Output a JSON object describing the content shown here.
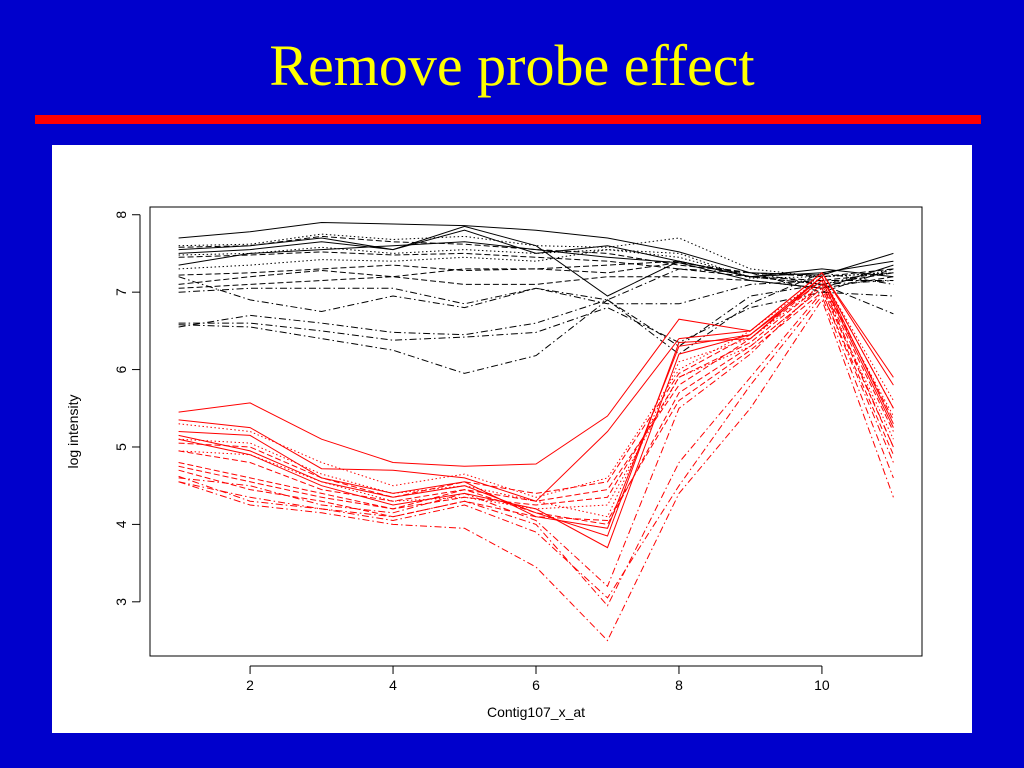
{
  "slide": {
    "title": "Remove probe effect"
  },
  "colors": {
    "background": "#0000cc",
    "title": "#ffff00",
    "rule": "#ff0000",
    "group_a": "#000000",
    "group_b": "#ff0000"
  },
  "chart_data": {
    "type": "line",
    "title": "",
    "xlabel": "Contig107_x_at",
    "ylabel": "log intensity",
    "xlim": [
      0.6,
      11.4
    ],
    "ylim": [
      2.3,
      8.1
    ],
    "xticks": [
      2,
      4,
      6,
      8,
      10
    ],
    "yticks": [
      3,
      4,
      5,
      6,
      7,
      8
    ],
    "grid": false,
    "legend": "none",
    "x": [
      1,
      2,
      3,
      4,
      5,
      6,
      7,
      8,
      9,
      10,
      11
    ],
    "series": [
      {
        "color": "#000000",
        "dash": "solid",
        "values": [
          7.7,
          7.78,
          7.9,
          7.88,
          7.86,
          7.8,
          7.7,
          7.52,
          7.25,
          7.22,
          7.5
        ]
      },
      {
        "color": "#000000",
        "dash": "solid",
        "values": [
          7.55,
          7.6,
          7.7,
          7.55,
          7.85,
          7.6,
          6.95,
          7.4,
          7.2,
          7.25,
          7.4
        ]
      },
      {
        "color": "#000000",
        "dash": "solid",
        "values": [
          7.35,
          7.5,
          7.55,
          7.6,
          7.65,
          7.55,
          7.45,
          7.38,
          7.15,
          7.05,
          7.35
        ]
      },
      {
        "color": "#000000",
        "dash": "solid",
        "values": [
          7.5,
          7.55,
          7.65,
          7.55,
          7.8,
          7.5,
          7.6,
          7.4,
          7.2,
          7.3,
          7.2
        ]
      },
      {
        "color": "#000000",
        "dash": "dotted",
        "values": [
          7.6,
          7.62,
          7.75,
          7.68,
          7.72,
          7.6,
          7.58,
          7.7,
          7.3,
          7.2,
          7.25
        ]
      },
      {
        "color": "#000000",
        "dash": "dotted",
        "values": [
          7.48,
          7.5,
          7.58,
          7.5,
          7.55,
          7.5,
          7.55,
          7.45,
          7.2,
          7.1,
          7.3
        ]
      },
      {
        "color": "#000000",
        "dash": "dotted",
        "values": [
          7.3,
          7.35,
          7.42,
          7.4,
          7.45,
          7.4,
          7.55,
          7.5,
          7.18,
          7.2,
          7.25
        ]
      },
      {
        "color": "#000000",
        "dash": "dashed",
        "values": [
          7.58,
          7.6,
          7.72,
          7.65,
          7.62,
          7.55,
          7.5,
          7.35,
          7.25,
          7.2,
          7.3
        ]
      },
      {
        "color": "#000000",
        "dash": "dashed",
        "values": [
          7.45,
          7.48,
          7.52,
          7.48,
          7.5,
          7.45,
          7.4,
          7.3,
          7.2,
          7.15,
          7.25
        ]
      },
      {
        "color": "#000000",
        "dash": "dashed",
        "values": [
          7.22,
          7.25,
          7.3,
          7.35,
          7.28,
          7.3,
          7.35,
          7.4,
          7.2,
          7.1,
          7.25
        ]
      },
      {
        "color": "#000000",
        "dash": "dashed",
        "values": [
          7.1,
          7.2,
          7.28,
          7.2,
          7.3,
          7.3,
          7.25,
          7.38,
          7.25,
          7.0,
          7.3
        ]
      },
      {
        "color": "#000000",
        "dash": "dashed",
        "values": [
          7.05,
          7.1,
          7.15,
          7.2,
          7.1,
          7.1,
          7.2,
          7.2,
          7.15,
          7.05,
          7.2
        ]
      },
      {
        "color": "#000000",
        "dash": "dashdot",
        "values": [
          7.0,
          7.05,
          7.05,
          7.05,
          6.85,
          7.05,
          6.9,
          7.3,
          7.25,
          7.1,
          7.15
        ]
      },
      {
        "color": "#000000",
        "dash": "dashdot",
        "values": [
          7.2,
          6.9,
          6.75,
          6.95,
          6.8,
          7.05,
          6.85,
          6.85,
          7.1,
          7.15,
          7.15
        ]
      },
      {
        "color": "#000000",
        "dash": "dashdot",
        "values": [
          6.55,
          6.7,
          6.6,
          6.48,
          6.45,
          6.6,
          6.9,
          6.3,
          6.95,
          7.1,
          6.72
        ]
      },
      {
        "color": "#000000",
        "dash": "dashdot",
        "values": [
          6.6,
          6.6,
          6.5,
          6.38,
          6.42,
          6.48,
          6.8,
          6.35,
          6.8,
          7.0,
          6.95
        ]
      },
      {
        "color": "#000000",
        "dash": "dashdot",
        "values": [
          6.58,
          6.55,
          6.4,
          6.25,
          5.95,
          6.18,
          6.9,
          6.2,
          6.85,
          7.25,
          7.1
        ]
      },
      {
        "color": "#ff0000",
        "dash": "solid",
        "values": [
          5.45,
          5.57,
          5.1,
          4.8,
          4.75,
          4.78,
          5.4,
          6.65,
          6.5,
          7.25,
          5.9
        ]
      },
      {
        "color": "#ff0000",
        "dash": "solid",
        "values": [
          5.35,
          5.25,
          4.72,
          4.7,
          4.6,
          4.3,
          5.2,
          6.4,
          6.5,
          7.25,
          5.8
        ]
      },
      {
        "color": "#ff0000",
        "dash": "solid",
        "values": [
          5.2,
          5.15,
          4.6,
          4.4,
          4.55,
          4.1,
          3.95,
          6.3,
          6.45,
          7.2,
          5.5
        ]
      },
      {
        "color": "#ff0000",
        "dash": "solid",
        "values": [
          5.15,
          4.95,
          4.55,
          4.35,
          4.5,
          4.15,
          3.85,
          6.35,
          6.4,
          7.2,
          5.3
        ]
      },
      {
        "color": "#ff0000",
        "dash": "solid",
        "values": [
          5.1,
          4.9,
          4.5,
          4.25,
          4.4,
          4.2,
          3.7,
          6.2,
          6.45,
          7.15,
          5.25
        ]
      },
      {
        "color": "#ff0000",
        "dash": "dotted",
        "values": [
          5.3,
          5.2,
          4.8,
          4.5,
          4.65,
          4.35,
          4.6,
          6.0,
          6.5,
          7.2,
          5.6
        ]
      },
      {
        "color": "#ff0000",
        "dash": "dotted",
        "values": [
          5.1,
          5.05,
          4.65,
          4.4,
          4.5,
          4.3,
          4.1,
          6.1,
          6.4,
          7.1,
          5.4
        ]
      },
      {
        "color": "#ff0000",
        "dash": "dotted",
        "values": [
          4.95,
          4.9,
          4.55,
          4.3,
          4.35,
          4.2,
          4.25,
          5.9,
          6.3,
          7.05,
          5.1
        ]
      },
      {
        "color": "#ff0000",
        "dash": "dashed",
        "values": [
          5.05,
          5.0,
          4.6,
          4.35,
          4.55,
          4.4,
          4.55,
          5.95,
          6.45,
          7.2,
          5.5
        ]
      },
      {
        "color": "#ff0000",
        "dash": "dashed",
        "values": [
          4.95,
          4.8,
          4.45,
          4.3,
          4.45,
          4.3,
          4.45,
          5.8,
          6.4,
          7.15,
          5.35
        ]
      },
      {
        "color": "#ff0000",
        "dash": "dashed",
        "values": [
          4.8,
          4.6,
          4.4,
          4.2,
          4.35,
          4.25,
          4.35,
          5.9,
          6.35,
          7.1,
          5.2
        ]
      },
      {
        "color": "#ff0000",
        "dash": "dashed",
        "values": [
          4.75,
          4.55,
          4.35,
          4.2,
          4.45,
          4.15,
          4.0,
          5.7,
          6.3,
          7.05,
          5.0
        ]
      },
      {
        "color": "#ff0000",
        "dash": "dashed",
        "values": [
          4.7,
          4.45,
          4.3,
          4.1,
          4.3,
          4.1,
          4.05,
          5.6,
          6.25,
          7.0,
          4.9
        ]
      },
      {
        "color": "#ff0000",
        "dash": "dashdot",
        "values": [
          4.6,
          4.5,
          4.25,
          4.15,
          4.4,
          4.05,
          3.2,
          5.5,
          6.2,
          7.1,
          5.0
        ]
      },
      {
        "color": "#ff0000",
        "dash": "dashdot",
        "values": [
          4.55,
          4.35,
          4.2,
          4.1,
          4.3,
          4.0,
          2.95,
          4.8,
          5.9,
          7.0,
          4.8
        ]
      },
      {
        "color": "#ff0000",
        "dash": "dashdot",
        "values": [
          4.62,
          4.3,
          4.2,
          4.05,
          4.25,
          3.9,
          3.05,
          4.5,
          5.8,
          6.95,
          4.6
        ]
      },
      {
        "color": "#ff0000",
        "dash": "dashdot",
        "values": [
          4.55,
          4.25,
          4.15,
          4.0,
          3.95,
          3.45,
          2.5,
          4.4,
          5.5,
          6.9,
          4.35
        ]
      }
    ]
  }
}
